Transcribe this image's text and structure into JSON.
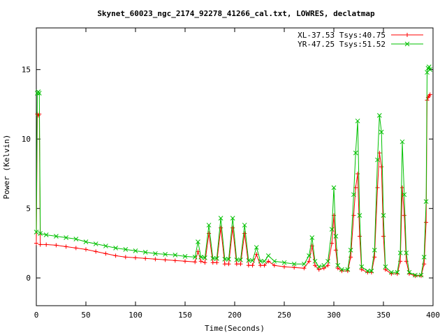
{
  "chart_data": {
    "type": "line",
    "title": "Skynet_60023_ngc_2174_92278_41266_cal.txt, LOWRES, declatmap",
    "xlabel": "Time(Seconds)",
    "ylabel": "Power (Kelvin)",
    "xlim": [
      0,
      400
    ],
    "ylim": [
      -2,
      18
    ],
    "x_ticks": [
      0,
      50,
      100,
      150,
      200,
      250,
      300,
      350,
      400
    ],
    "y_ticks": [
      0,
      5,
      10,
      15
    ],
    "grid": false,
    "legend_position": "top-right",
    "series": [
      {
        "name": "XL-37.53 Tsys:40.75",
        "color": "#ff0000",
        "marker": "plus",
        "points": [
          [
            0,
            2.5
          ],
          [
            1,
            11.8
          ],
          [
            2,
            11.7
          ],
          [
            3,
            11.8
          ],
          [
            4,
            2.4
          ],
          [
            10,
            2.4
          ],
          [
            20,
            2.35
          ],
          [
            30,
            2.25
          ],
          [
            40,
            2.15
          ],
          [
            50,
            2.05
          ],
          [
            60,
            1.9
          ],
          [
            70,
            1.75
          ],
          [
            80,
            1.6
          ],
          [
            90,
            1.5
          ],
          [
            100,
            1.45
          ],
          [
            110,
            1.4
          ],
          [
            120,
            1.35
          ],
          [
            130,
            1.3
          ],
          [
            140,
            1.25
          ],
          [
            150,
            1.2
          ],
          [
            160,
            1.15
          ],
          [
            163,
            1.9
          ],
          [
            166,
            1.2
          ],
          [
            170,
            1.1
          ],
          [
            174,
            3.2
          ],
          [
            178,
            1.1
          ],
          [
            182,
            1.1
          ],
          [
            186,
            3.6
          ],
          [
            190,
            1.0
          ],
          [
            194,
            1.0
          ],
          [
            198,
            3.6
          ],
          [
            202,
            1.0
          ],
          [
            206,
            1.0
          ],
          [
            210,
            3.2
          ],
          [
            214,
            0.9
          ],
          [
            218,
            0.9
          ],
          [
            222,
            1.7
          ],
          [
            226,
            0.9
          ],
          [
            230,
            0.9
          ],
          [
            234,
            1.2
          ],
          [
            240,
            0.9
          ],
          [
            250,
            0.8
          ],
          [
            260,
            0.75
          ],
          [
            270,
            0.7
          ],
          [
            275,
            1.2
          ],
          [
            278,
            2.3
          ],
          [
            281,
            0.9
          ],
          [
            285,
            0.6
          ],
          [
            290,
            0.7
          ],
          [
            294,
            0.9
          ],
          [
            298,
            2.5
          ],
          [
            300,
            4.5
          ],
          [
            302,
            2.0
          ],
          [
            304,
            0.7
          ],
          [
            308,
            0.5
          ],
          [
            314,
            0.5
          ],
          [
            317,
            1.5
          ],
          [
            320,
            4.5
          ],
          [
            322,
            6.5
          ],
          [
            324,
            7.5
          ],
          [
            326,
            3.0
          ],
          [
            328,
            0.6
          ],
          [
            334,
            0.4
          ],
          [
            338,
            0.4
          ],
          [
            341,
            1.5
          ],
          [
            344,
            6.5
          ],
          [
            346,
            9.0
          ],
          [
            348,
            8.0
          ],
          [
            350,
            3.0
          ],
          [
            352,
            0.6
          ],
          [
            358,
            0.3
          ],
          [
            364,
            0.3
          ],
          [
            367,
            1.2
          ],
          [
            369,
            6.5
          ],
          [
            371,
            4.5
          ],
          [
            373,
            1.2
          ],
          [
            376,
            0.3
          ],
          [
            382,
            0.15
          ],
          [
            388,
            0.15
          ],
          [
            391,
            1.0
          ],
          [
            393,
            4.0
          ],
          [
            394,
            12.8
          ],
          [
            395,
            13.0
          ],
          [
            396,
            13.1
          ],
          [
            397,
            13.2
          ]
        ]
      },
      {
        "name": "YR-47.25 Tsys:51.52",
        "color": "#00c000",
        "marker": "cross",
        "points": [
          [
            0,
            3.3
          ],
          [
            1,
            13.3
          ],
          [
            2,
            13.4
          ],
          [
            3,
            13.3
          ],
          [
            4,
            3.2
          ],
          [
            10,
            3.1
          ],
          [
            20,
            3.0
          ],
          [
            30,
            2.9
          ],
          [
            40,
            2.8
          ],
          [
            50,
            2.6
          ],
          [
            60,
            2.45
          ],
          [
            70,
            2.3
          ],
          [
            80,
            2.15
          ],
          [
            90,
            2.05
          ],
          [
            100,
            1.95
          ],
          [
            110,
            1.85
          ],
          [
            120,
            1.75
          ],
          [
            130,
            1.7
          ],
          [
            140,
            1.65
          ],
          [
            150,
            1.55
          ],
          [
            160,
            1.5
          ],
          [
            163,
            2.6
          ],
          [
            166,
            1.5
          ],
          [
            170,
            1.45
          ],
          [
            174,
            3.8
          ],
          [
            178,
            1.4
          ],
          [
            182,
            1.4
          ],
          [
            186,
            4.3
          ],
          [
            190,
            1.35
          ],
          [
            194,
            1.35
          ],
          [
            198,
            4.3
          ],
          [
            202,
            1.3
          ],
          [
            206,
            1.3
          ],
          [
            210,
            3.8
          ],
          [
            214,
            1.25
          ],
          [
            218,
            1.25
          ],
          [
            222,
            2.2
          ],
          [
            226,
            1.2
          ],
          [
            230,
            1.2
          ],
          [
            234,
            1.6
          ],
          [
            240,
            1.2
          ],
          [
            250,
            1.1
          ],
          [
            260,
            1.0
          ],
          [
            270,
            1.0
          ],
          [
            275,
            1.6
          ],
          [
            278,
            2.9
          ],
          [
            281,
            1.2
          ],
          [
            285,
            0.8
          ],
          [
            290,
            0.9
          ],
          [
            294,
            1.2
          ],
          [
            298,
            3.5
          ],
          [
            300,
            6.5
          ],
          [
            302,
            3.0
          ],
          [
            304,
            0.9
          ],
          [
            308,
            0.6
          ],
          [
            314,
            0.6
          ],
          [
            317,
            2.0
          ],
          [
            320,
            6.0
          ],
          [
            322,
            9.0
          ],
          [
            324,
            11.3
          ],
          [
            326,
            4.5
          ],
          [
            328,
            0.8
          ],
          [
            334,
            0.5
          ],
          [
            338,
            0.5
          ],
          [
            341,
            2.0
          ],
          [
            344,
            8.5
          ],
          [
            346,
            11.7
          ],
          [
            348,
            10.5
          ],
          [
            350,
            4.5
          ],
          [
            352,
            0.8
          ],
          [
            358,
            0.4
          ],
          [
            364,
            0.4
          ],
          [
            367,
            1.8
          ],
          [
            369,
            9.8
          ],
          [
            371,
            6.0
          ],
          [
            373,
            1.8
          ],
          [
            376,
            0.4
          ],
          [
            382,
            0.2
          ],
          [
            388,
            0.2
          ],
          [
            391,
            1.5
          ],
          [
            393,
            5.5
          ],
          [
            394,
            14.8
          ],
          [
            395,
            15.1
          ],
          [
            396,
            15.2
          ],
          [
            397,
            15.0
          ]
        ]
      }
    ]
  }
}
